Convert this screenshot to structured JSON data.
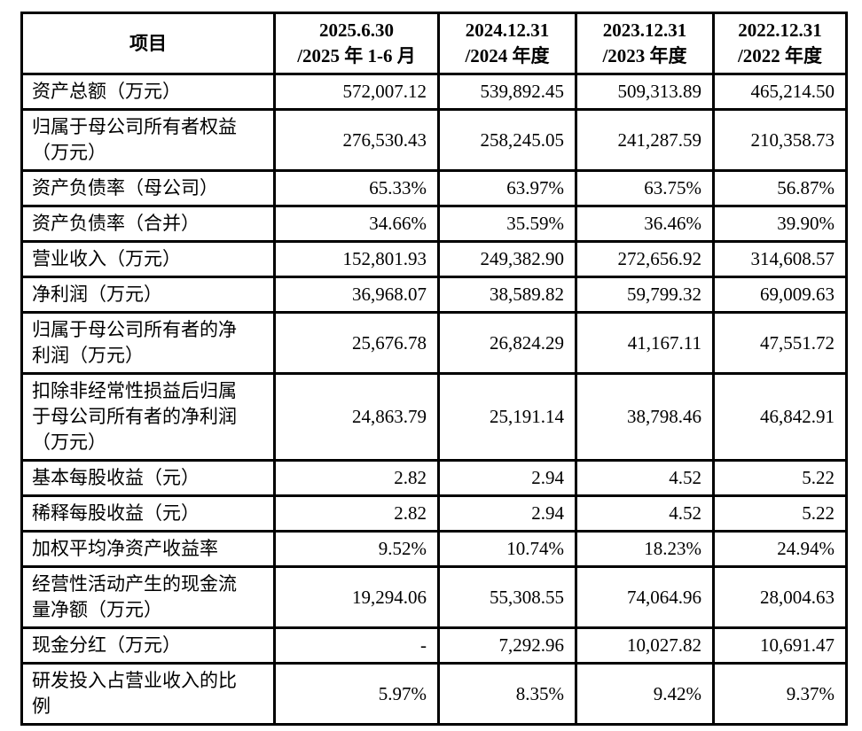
{
  "table": {
    "header": {
      "item_label": "项目",
      "periods": [
        {
          "line1": "2025.6.30",
          "line2": "/2025 年 1-6 月"
        },
        {
          "line1": "2024.12.31",
          "line2": "/2024 年度"
        },
        {
          "line1": "2023.12.31",
          "line2": "/2023 年度"
        },
        {
          "line1": "2022.12.31",
          "line2": "/2022 年度"
        }
      ]
    },
    "rows": [
      {
        "label": "资产总额（万元）",
        "values": [
          "572,007.12",
          "539,892.45",
          "509,313.89",
          "465,214.50"
        ]
      },
      {
        "label": "归属于母公司所有者权益（万元）",
        "values": [
          "276,530.43",
          "258,245.05",
          "241,287.59",
          "210,358.73"
        ]
      },
      {
        "label": "资产负债率（母公司）",
        "values": [
          "65.33%",
          "63.97%",
          "63.75%",
          "56.87%"
        ]
      },
      {
        "label": "资产负债率（合并）",
        "values": [
          "34.66%",
          "35.59%",
          "36.46%",
          "39.90%"
        ]
      },
      {
        "label": "营业收入（万元）",
        "values": [
          "152,801.93",
          "249,382.90",
          "272,656.92",
          "314,608.57"
        ]
      },
      {
        "label": "净利润（万元）",
        "values": [
          "36,968.07",
          "38,589.82",
          "59,799.32",
          "69,009.63"
        ]
      },
      {
        "label": "归属于母公司所有者的净利润（万元）",
        "values": [
          "25,676.78",
          "26,824.29",
          "41,167.11",
          "47,551.72"
        ]
      },
      {
        "label": "扣除非经常性损益后归属于母公司所有者的净利润（万元）",
        "values": [
          "24,863.79",
          "25,191.14",
          "38,798.46",
          "46,842.91"
        ]
      },
      {
        "label": "基本每股收益（元）",
        "values": [
          "2.82",
          "2.94",
          "4.52",
          "5.22"
        ]
      },
      {
        "label": "稀释每股收益（元）",
        "values": [
          "2.82",
          "2.94",
          "4.52",
          "5.22"
        ]
      },
      {
        "label": "加权平均净资产收益率",
        "values": [
          "9.52%",
          "10.74%",
          "18.23%",
          "24.94%"
        ]
      },
      {
        "label": "经营性活动产生的现金流量净额（万元）",
        "values": [
          "19,294.06",
          "55,308.55",
          "74,064.96",
          "28,004.63"
        ]
      },
      {
        "label": "现金分红（万元）",
        "values": [
          "-",
          "7,292.96",
          "10,027.82",
          "10,691.47"
        ]
      },
      {
        "label": "研发投入占营业收入的比例",
        "values": [
          "5.97%",
          "8.35%",
          "9.42%",
          "9.37%"
        ]
      }
    ]
  }
}
